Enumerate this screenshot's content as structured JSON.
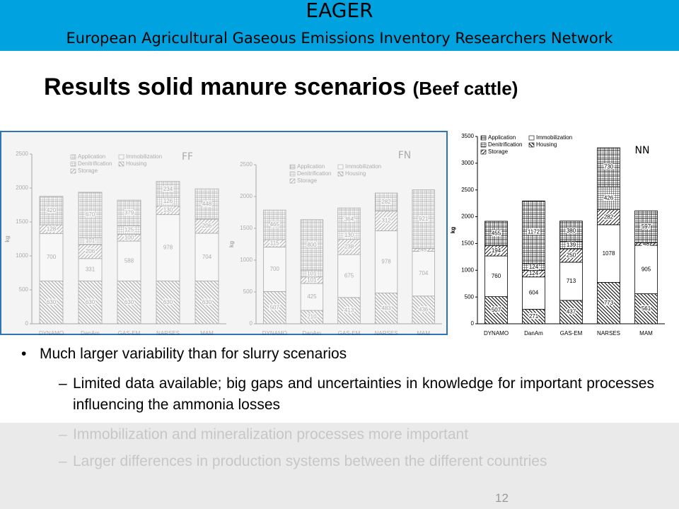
{
  "header": {
    "title": "EAGER",
    "subtitle": "European Agricultural Gaseous Emissions Inventory Researchers Network"
  },
  "slide_title": "Results solid manure scenarios",
  "slide_title_note": "(Beef cattle)",
  "chart_data": [
    {
      "type": "bar",
      "stacked": true,
      "title": "FF",
      "ylabel": "kg",
      "categories": [
        "DYNAMO",
        "DanAm",
        "GAS-EM",
        "NARSES",
        "MAM"
      ],
      "series": [
        {
          "name": "Housing",
          "color": "#000000",
          "values": [
            630,
            630,
            630,
            630,
            630
          ]
        },
        {
          "name": "Immobilization",
          "color": "#000000",
          "values": [
            700,
            331,
            588,
            978,
            704
          ]
        },
        {
          "name": "Storage",
          "color": "#000000",
          "values": [
            128,
            206,
            100,
            130,
            206
          ]
        },
        {
          "name": "Denitrification",
          "color": "#000000",
          "values": [
            null,
            101,
            125,
            126,
            null
          ]
        },
        {
          "name": "Application",
          "color": "#000000",
          "values": [
            420,
            670,
            379,
            234,
            448
          ]
        }
      ],
      "ylim": [
        0,
        2500
      ],
      "yticks": [
        0,
        500,
        1000,
        1500,
        2000,
        2500
      ]
    },
    {
      "type": "bar",
      "stacked": true,
      "title": "FN",
      "ylabel": "kg",
      "categories": [
        "DYNAMO",
        "DanAm",
        "GAS-EM",
        "NARSES",
        "MAM"
      ],
      "series": [
        {
          "name": "Housing",
          "color": "#000000",
          "values": [
            507,
            210,
            413,
            483,
            436
          ]
        },
        {
          "name": "Immobilization",
          "color": "#000000",
          "values": [
            700,
            425,
            675,
            978,
            704
          ]
        },
        {
          "name": "Storage",
          "color": "#000000",
          "values": [
            115,
            101,
            238,
            312,
            45
          ]
        },
        {
          "name": "Denitrification",
          "color": "#000000",
          "values": [
            null,
            101,
            130,
            null,
            null
          ]
        },
        {
          "name": "Application",
          "color": "#000000",
          "values": [
            465,
            800,
            364,
            282,
            921
          ]
        }
      ],
      "ylim": [
        0,
        2500
      ],
      "yticks": [
        0,
        500,
        1000,
        1500,
        2000,
        2500
      ]
    },
    {
      "type": "bar",
      "stacked": true,
      "title": "NN",
      "ylabel": "kg",
      "categories": [
        "DYNAMO",
        "DanAm",
        "GAS-EM",
        "NARSES",
        "MAM"
      ],
      "series": [
        {
          "name": "Housing",
          "color": "#000000",
          "values": [
            507,
            271,
            437,
            773,
            561
          ]
        },
        {
          "name": "Immobilization",
          "color": "#000000",
          "values": [
            760,
            604,
            713,
            1078,
            905
          ]
        },
        {
          "name": "Storage",
          "color": "#000000",
          "values": [
            194,
            124,
            250,
            282,
            48
          ]
        },
        {
          "name": "Denitrification",
          "color": "#000000",
          "values": [
            null,
            124,
            139,
            426,
            null
          ]
        },
        {
          "name": "Application",
          "color": "#000000",
          "values": [
            455,
            1172,
            380,
            730,
            597
          ]
        }
      ],
      "ylim": [
        0,
        3500
      ],
      "yticks": [
        0,
        500,
        1000,
        1500,
        2000,
        2500,
        3000,
        3500
      ]
    }
  ],
  "bullets": [
    "Much larger variability than for slurry scenarios"
  ],
  "sub_bullets": [
    "Limited data available; big gaps and uncertainties in knowledge for important processes influencing the ammonia losses",
    "Immobilization and mineralization processes more important",
    "Larger differences in production systems between the different countries"
  ],
  "page_number": "12"
}
